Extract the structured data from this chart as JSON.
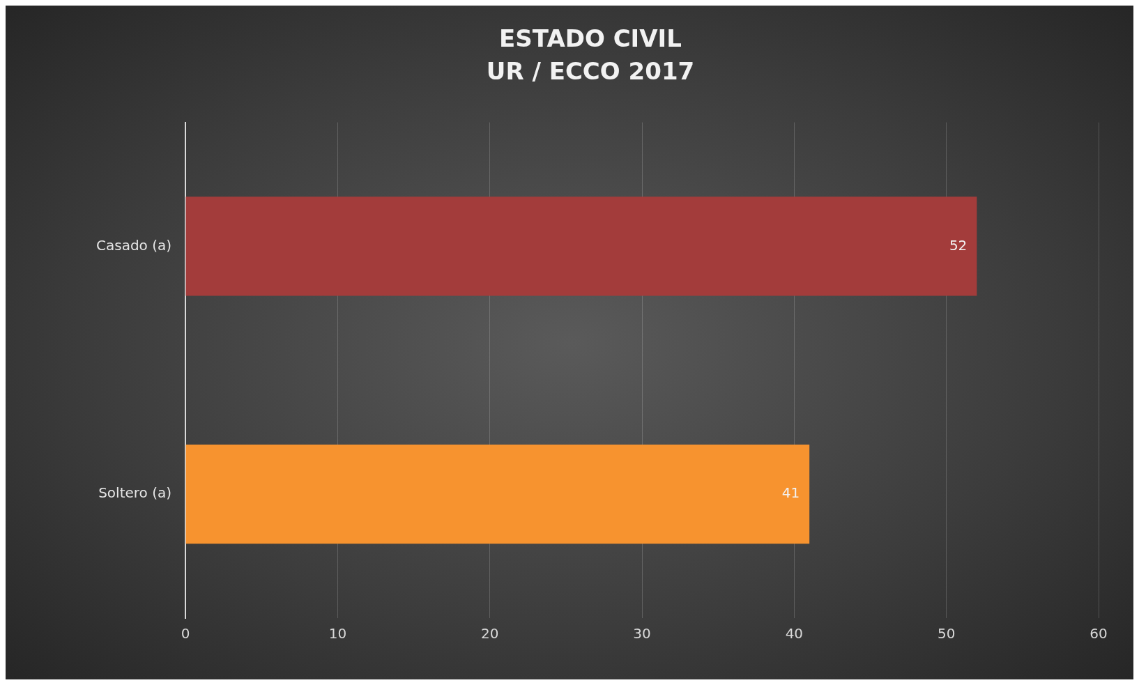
{
  "chart_data": {
    "type": "bar",
    "title": "ESTADO CIVIL",
    "subtitle": "UR / ECCO 2017",
    "orientation": "horizontal",
    "categories": [
      "Casado (a)",
      "Soltero (a)"
    ],
    "values": [
      52,
      41
    ],
    "colors": [
      "#a33c3b",
      "#f7932f"
    ],
    "xlim": [
      0,
      60
    ],
    "xticks": [
      0,
      10,
      20,
      30,
      40,
      50,
      60
    ],
    "grid": "x",
    "data_labels": true,
    "legend": false
  }
}
